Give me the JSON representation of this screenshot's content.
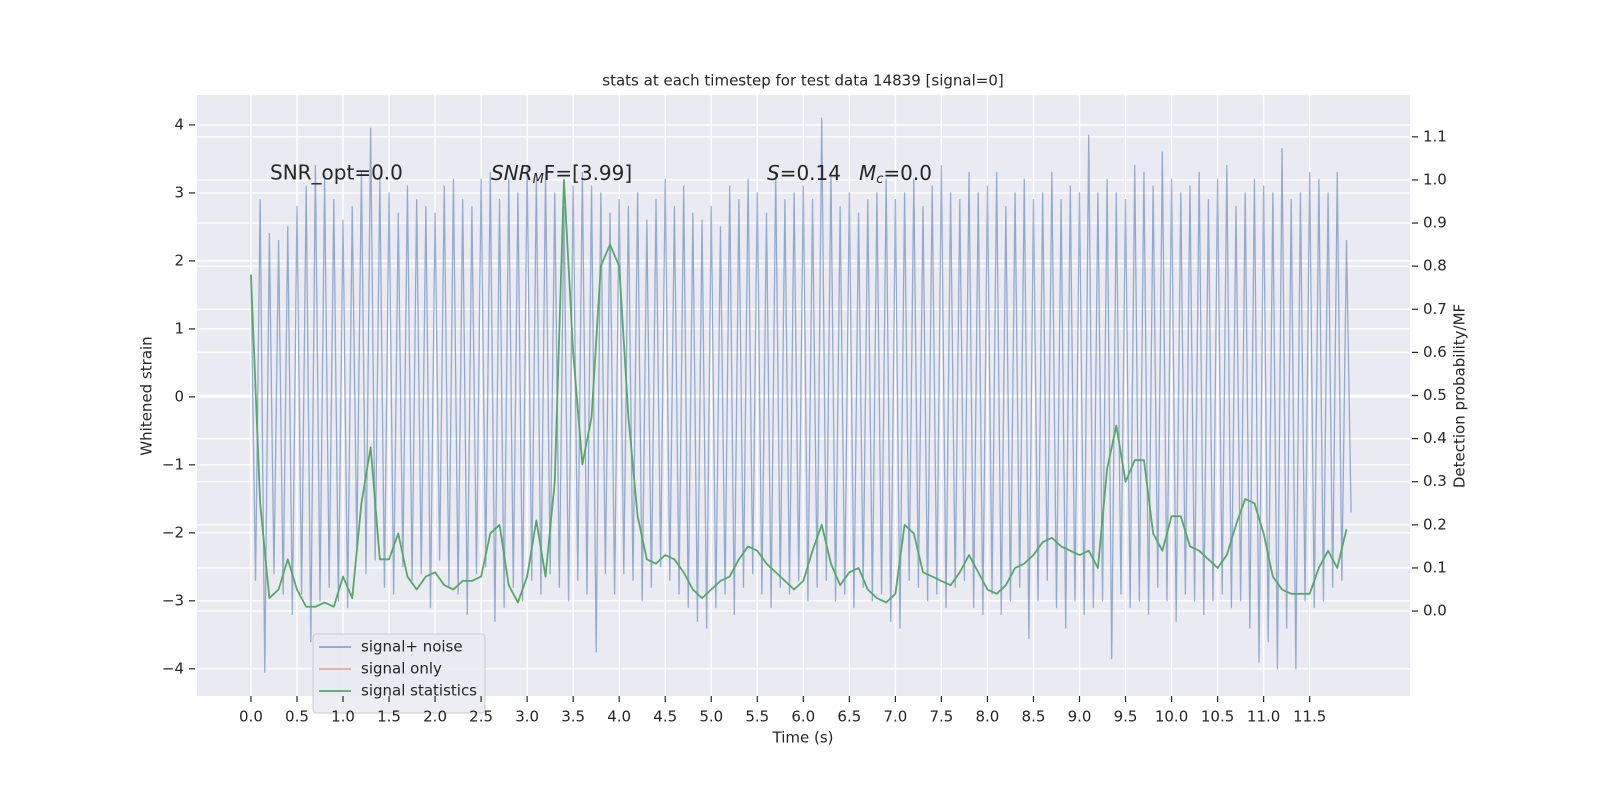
{
  "chart_data": {
    "type": "line",
    "title": "stats at each timestep for test data 14839 [signal=0]",
    "xlabel": "Time (s)",
    "ylabel": "Whitened strain",
    "y2label": "Detection probability/MF",
    "annotations": [
      "SNR_opt=0.0",
      [
        "SNR",
        "M",
        "F=[3.99]"
      ],
      [
        "S",
        "=0.14"
      ],
      [
        "M",
        "c",
        "=0.0"
      ]
    ],
    "xlim": [
      -0.586,
      12.59
    ],
    "ylim": [
      -4.4,
      4.44
    ],
    "y2lim": [
      -0.197,
      1.197
    ],
    "xticks": [
      {
        "value": 0,
        "label": "0.0"
      },
      0.5,
      {
        "value": 1,
        "label": "1.0"
      },
      1.5,
      {
        "value": 2,
        "label": "2.0"
      },
      2.5,
      {
        "value": 3,
        "label": "3.0"
      },
      3.5,
      {
        "value": 4,
        "label": "4.0"
      },
      4.5,
      {
        "value": 5,
        "label": "5.0"
      },
      5.5,
      {
        "value": 6,
        "label": "6.0"
      },
      6.5,
      {
        "value": 7,
        "label": "7.0"
      },
      7.5,
      {
        "value": 8,
        "label": "8.0"
      },
      8.5,
      {
        "value": 9,
        "label": "9.0"
      },
      9.5,
      {
        "value": 10,
        "label": "10.0"
      },
      10.5,
      {
        "value": 11,
        "label": "11.0"
      },
      11.5
    ],
    "yticks": [
      {
        "value": -4,
        "label": "−4"
      },
      {
        "value": -3,
        "label": "−3"
      },
      {
        "value": -2,
        "label": "−2"
      },
      {
        "value": -1,
        "label": "−1"
      },
      0,
      1,
      2,
      3,
      4
    ],
    "y2ticks": [
      {
        "value": 0,
        "label": "0.0"
      },
      0.1,
      0.2,
      0.3,
      0.4,
      0.5,
      0.6,
      0.7,
      0.8,
      0.9,
      {
        "value": 1,
        "label": "1.0"
      },
      1.1
    ],
    "grid": true,
    "legend": "lower left",
    "series": [
      {
        "name": "signal+ noise",
        "color": "#4c72b0",
        "axis": "y",
        "x": [
          0,
          0.05,
          0.1,
          0.15,
          0.2,
          0.25,
          0.3,
          0.35,
          0.4,
          0.45,
          0.5,
          0.55,
          0.6,
          0.65,
          0.7,
          0.75,
          0.8,
          0.85,
          0.9,
          0.95,
          1,
          1.05,
          1.1,
          1.15,
          1.2,
          1.25,
          1.3,
          1.35,
          1.4,
          1.45,
          1.5,
          1.55,
          1.6,
          1.65,
          1.7,
          1.75,
          1.8,
          1.85,
          1.9,
          1.95,
          2,
          2.05,
          2.1,
          2.15,
          2.2,
          2.25,
          2.3,
          2.35,
          2.4,
          2.45,
          2.5,
          2.55,
          2.6,
          2.65,
          2.7,
          2.75,
          2.8,
          2.85,
          2.9,
          2.95,
          3,
          3.05,
          3.1,
          3.15,
          3.2,
          3.25,
          3.3,
          3.35,
          3.4,
          3.45,
          3.5,
          3.55,
          3.6,
          3.65,
          3.7,
          3.75,
          3.8,
          3.85,
          3.9,
          3.95,
          4,
          4.05,
          4.1,
          4.15,
          4.2,
          4.25,
          4.3,
          4.35,
          4.4,
          4.45,
          4.5,
          4.55,
          4.6,
          4.65,
          4.7,
          4.75,
          4.8,
          4.85,
          4.9,
          4.95,
          5,
          5.05,
          5.1,
          5.15,
          5.2,
          5.25,
          5.3,
          5.35,
          5.4,
          5.45,
          5.5,
          5.55,
          5.6,
          5.65,
          5.7,
          5.75,
          5.8,
          5.85,
          5.9,
          5.95,
          6,
          6.05,
          6.1,
          6.15,
          6.2,
          6.25,
          6.3,
          6.35,
          6.4,
          6.45,
          6.5,
          6.55,
          6.6,
          6.65,
          6.7,
          6.75,
          6.8,
          6.85,
          6.9,
          6.95,
          7,
          7.05,
          7.1,
          7.15,
          7.2,
          7.25,
          7.3,
          7.35,
          7.4,
          7.45,
          7.5,
          7.55,
          7.6,
          7.65,
          7.7,
          7.75,
          7.8,
          7.85,
          7.9,
          7.95,
          8,
          8.05,
          8.1,
          8.15,
          8.2,
          8.25,
          8.3,
          8.35,
          8.4,
          8.45,
          8.5,
          8.55,
          8.6,
          8.65,
          8.7,
          8.75,
          8.8,
          8.85,
          8.9,
          8.95,
          9,
          9.05,
          9.1,
          9.15,
          9.2,
          9.25,
          9.3,
          9.35,
          9.4,
          9.45,
          9.5,
          9.55,
          9.6,
          9.65,
          9.7,
          9.75,
          9.8,
          9.85,
          9.9,
          9.95,
          10,
          10.05,
          10.1,
          10.15,
          10.2,
          10.25,
          10.3,
          10.35,
          10.4,
          10.45,
          10.5,
          10.55,
          10.6,
          10.65,
          10.7,
          10.75,
          10.8,
          10.85,
          10.9,
          10.95,
          11,
          11.05,
          11.1,
          11.15,
          11.2,
          11.25,
          11.3,
          11.35,
          11.4,
          11.45,
          11.5,
          11.55,
          11.6,
          11.65,
          11.7,
          11.75,
          11.8,
          11.85,
          11.9,
          11.95
        ],
        "values": [
          1.8,
          -2.7,
          2.9,
          -4.05,
          2.4,
          -2.6,
          2.3,
          -2.9,
          2.5,
          -3.2,
          2.8,
          -2.9,
          3.1,
          -3.6,
          3.4,
          -3.0,
          3.2,
          -2.8,
          2.9,
          -3.0,
          2.6,
          -3.1,
          2.8,
          -2.2,
          3.3,
          -2.6,
          3.95,
          -2.4,
          3.2,
          -2.8,
          3.0,
          -2.9,
          2.7,
          -2.5,
          3.1,
          -2.7,
          2.9,
          -2.6,
          2.8,
          -3.1,
          2.7,
          -2.4,
          3.1,
          -2.8,
          3.2,
          -2.9,
          2.9,
          -3.2,
          2.8,
          -2.6,
          3.2,
          -2.5,
          3.3,
          -3.3,
          2.9,
          -3.1,
          3.2,
          -2.8,
          3.0,
          -3.0,
          3.4,
          -2.7,
          3.2,
          -2.9,
          3.3,
          -2.6,
          3.0,
          -2.8,
          2.8,
          -3.0,
          3.1,
          -2.7,
          3.3,
          -2.9,
          3.1,
          -3.75,
          3.0,
          -2.6,
          2.7,
          -2.9,
          2.9,
          -2.6,
          2.8,
          -2.7,
          3.0,
          -3.0,
          2.6,
          -2.8,
          2.9,
          -2.5,
          3.2,
          -2.7,
          2.8,
          -2.9,
          3.1,
          -3.1,
          2.7,
          -3.3,
          2.6,
          -3.4,
          2.8,
          -3.1,
          2.5,
          -2.9,
          3.1,
          -3.2,
          2.9,
          -2.8,
          3.2,
          -2.6,
          3.0,
          -2.9,
          2.7,
          -3.1,
          3.3,
          -2.8,
          2.9,
          -2.9,
          3.0,
          -2.7,
          3.1,
          -3.0,
          2.9,
          -2.8,
          4.1,
          -2.7,
          3.3,
          -3.0,
          2.8,
          -2.9,
          3.0,
          -3.1,
          2.7,
          -2.8,
          2.9,
          -3.0,
          3.0,
          -2.9,
          3.2,
          -3.3,
          2.9,
          -3.4,
          3.0,
          -2.7,
          3.2,
          -2.8,
          2.8,
          -3.0,
          3.1,
          -2.9,
          3.4,
          -3.1,
          3.0,
          -2.8,
          2.9,
          -2.7,
          3.3,
          -3.1,
          3.0,
          -3.2,
          3.1,
          -2.9,
          3.3,
          -3.2,
          2.8,
          -3.0,
          3.0,
          -2.8,
          3.2,
          -3.55,
          2.9,
          -3.0,
          3.0,
          -2.7,
          3.3,
          -3.1,
          2.9,
          -3.4,
          3.1,
          -3.0,
          3.0,
          -3.2,
          3.85,
          -3.1,
          3.0,
          -3.0,
          3.2,
          -3.85,
          3.0,
          -2.9,
          2.9,
          -3.1,
          3.4,
          -3.0,
          3.3,
          -3.2,
          3.1,
          -2.8,
          3.6,
          -3.0,
          3.2,
          -3.3,
          3.0,
          -2.9,
          3.1,
          -3.0,
          3.3,
          -3.2,
          2.9,
          -3.0,
          3.2,
          -2.9,
          3.4,
          -3.1,
          2.8,
          -3.0,
          3.0,
          -3.4,
          3.2,
          -3.9,
          3.1,
          -3.6,
          3.0,
          -4.0,
          3.65,
          -3.4,
          2.9,
          -4.0,
          3.0,
          -3.0,
          3.3,
          -3.1,
          3.2,
          -3.0,
          3.0,
          -2.8,
          3.3,
          -2.7,
          2.3,
          -1.7
        ]
      },
      {
        "name": "signal only",
        "color": "#dd8452",
        "axis": "y"
      },
      {
        "name": "signal statistics",
        "color": "#55a868",
        "axis": "y2",
        "x": [
          0,
          0.1,
          0.2,
          0.3,
          0.4,
          0.5,
          0.6,
          0.7,
          0.8,
          0.9,
          1,
          1.1,
          1.2,
          1.3,
          1.4,
          1.5,
          1.6,
          1.7,
          1.8,
          1.9,
          2,
          2.1,
          2.2,
          2.3,
          2.4,
          2.5,
          2.6,
          2.7,
          2.8,
          2.9,
          3,
          3.1,
          3.2,
          3.3,
          3.4,
          3.5,
          3.6,
          3.7,
          3.8,
          3.9,
          4,
          4.1,
          4.2,
          4.3,
          4.4,
          4.5,
          4.6,
          4.7,
          4.8,
          4.9,
          5,
          5.1,
          5.2,
          5.3,
          5.4,
          5.5,
          5.6,
          5.7,
          5.8,
          5.9,
          6,
          6.1,
          6.2,
          6.3,
          6.4,
          6.5,
          6.6,
          6.7,
          6.8,
          6.9,
          7,
          7.1,
          7.2,
          7.3,
          7.4,
          7.5,
          7.6,
          7.7,
          7.8,
          7.9,
          8,
          8.1,
          8.2,
          8.3,
          8.4,
          8.5,
          8.6,
          8.7,
          8.8,
          8.9,
          9,
          9.1,
          9.2,
          9.3,
          9.4,
          9.5,
          9.6,
          9.7,
          9.8,
          9.9,
          10,
          10.1,
          10.2,
          10.3,
          10.4,
          10.5,
          10.6,
          10.7,
          10.8,
          10.9,
          11,
          11.1,
          11.2,
          11.3,
          11.4,
          11.5,
          11.6,
          11.7,
          11.8,
          11.9
        ],
        "values": [
          0.78,
          0.25,
          0.03,
          0.05,
          0.12,
          0.05,
          0.01,
          0.01,
          0.02,
          0.01,
          0.08,
          0.03,
          0.25,
          0.38,
          0.12,
          0.12,
          0.18,
          0.08,
          0.05,
          0.08,
          0.09,
          0.06,
          0.05,
          0.07,
          0.07,
          0.08,
          0.18,
          0.2,
          0.06,
          0.02,
          0.08,
          0.21,
          0.08,
          0.3,
          1.0,
          0.6,
          0.34,
          0.45,
          0.8,
          0.85,
          0.8,
          0.45,
          0.22,
          0.12,
          0.11,
          0.13,
          0.12,
          0.09,
          0.05,
          0.03,
          0.05,
          0.07,
          0.08,
          0.12,
          0.15,
          0.14,
          0.11,
          0.09,
          0.07,
          0.05,
          0.07,
          0.14,
          0.2,
          0.11,
          0.06,
          0.09,
          0.1,
          0.05,
          0.03,
          0.02,
          0.04,
          0.2,
          0.18,
          0.09,
          0.08,
          0.07,
          0.06,
          0.09,
          0.13,
          0.09,
          0.05,
          0.04,
          0.06,
          0.1,
          0.11,
          0.13,
          0.16,
          0.17,
          0.15,
          0.14,
          0.13,
          0.14,
          0.1,
          0.33,
          0.43,
          0.3,
          0.35,
          0.35,
          0.18,
          0.14,
          0.22,
          0.22,
          0.15,
          0.14,
          0.12,
          0.1,
          0.13,
          0.2,
          0.26,
          0.25,
          0.18,
          0.08,
          0.05,
          0.04,
          0.04,
          0.04,
          0.1,
          0.14,
          0.1,
          0.19
        ]
      }
    ]
  }
}
